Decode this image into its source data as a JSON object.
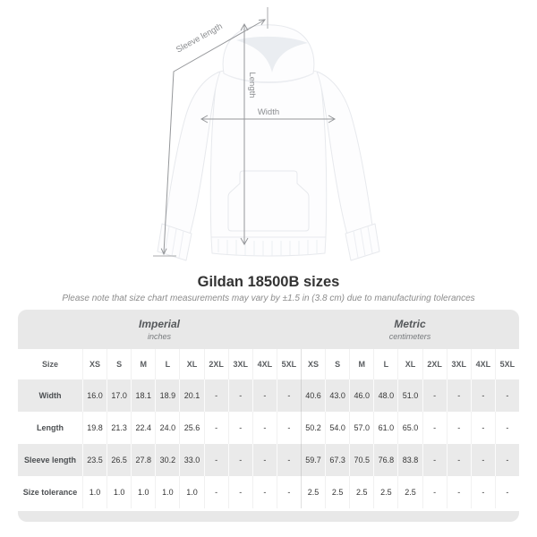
{
  "title": "Gildan 18500B sizes",
  "note": "Please note that size chart measurements may vary by ±1.5 in (3.8 cm) due to manufacturing tolerances",
  "diagram": {
    "sleeve_length_label": "Sleeve length",
    "length_label": "Length",
    "width_label": "Width"
  },
  "chart_data": {
    "type": "table",
    "corner_header": "Size",
    "groups": [
      {
        "name": "Imperial",
        "unit": "inches"
      },
      {
        "name": "Metric",
        "unit": "centimeters"
      }
    ],
    "sizes": [
      "XS",
      "S",
      "M",
      "L",
      "XL",
      "2XL",
      "3XL",
      "4XL",
      "5XL"
    ],
    "empty_marker": "-",
    "rows": [
      {
        "label": "Width",
        "imperial": [
          "16.0",
          "17.0",
          "18.1",
          "18.9",
          "20.1",
          "-",
          "-",
          "-",
          "-"
        ],
        "metric": [
          "40.6",
          "43.0",
          "46.0",
          "48.0",
          "51.0",
          "-",
          "-",
          "-",
          "-"
        ]
      },
      {
        "label": "Length",
        "imperial": [
          "19.8",
          "21.3",
          "22.4",
          "24.0",
          "25.6",
          "-",
          "-",
          "-",
          "-"
        ],
        "metric": [
          "50.2",
          "54.0",
          "57.0",
          "61.0",
          "65.0",
          "-",
          "-",
          "-",
          "-"
        ]
      },
      {
        "label": "Sleeve length",
        "imperial": [
          "23.5",
          "26.5",
          "27.8",
          "30.2",
          "33.0",
          "-",
          "-",
          "-",
          "-"
        ],
        "metric": [
          "59.7",
          "67.3",
          "70.5",
          "76.8",
          "83.8",
          "-",
          "-",
          "-",
          "-"
        ]
      },
      {
        "label": "Size tolerance",
        "imperial": [
          "1.0",
          "1.0",
          "1.0",
          "1.0",
          "1.0",
          "-",
          "-",
          "-",
          "-"
        ],
        "metric": [
          "2.5",
          "2.5",
          "2.5",
          "2.5",
          "2.5",
          "-",
          "-",
          "-",
          "-"
        ]
      }
    ]
  },
  "colors": {
    "header_band": "#e8e8e8",
    "row_stripe": "#eaeaea",
    "title_text": "#333333",
    "note_text": "#8c8c8c",
    "measure_line": "#95979a"
  }
}
